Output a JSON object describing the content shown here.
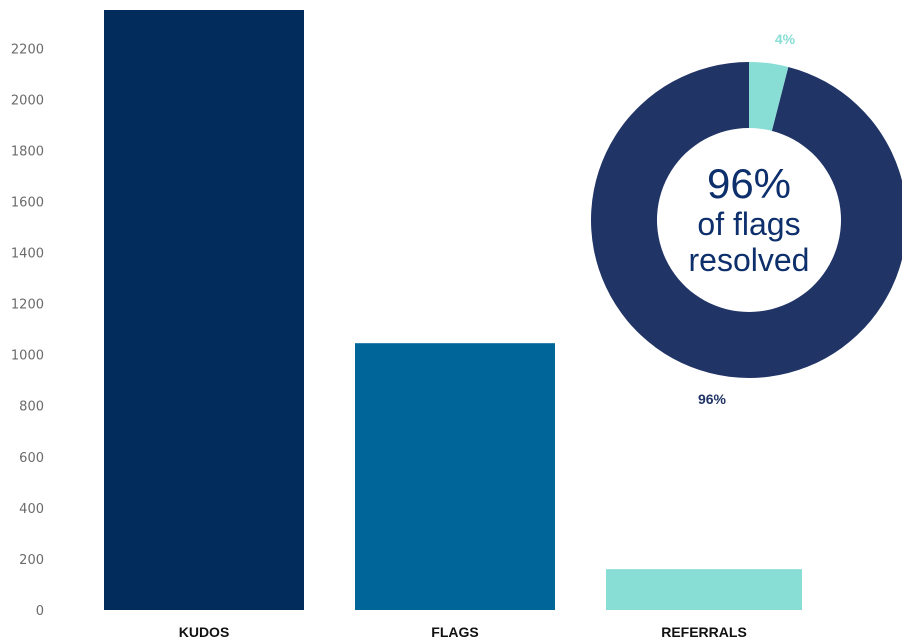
{
  "chart_data": [
    {
      "type": "bar",
      "categories": [
        "KUDOS",
        "FLAGS",
        "REFERRALS"
      ],
      "values": [
        2350,
        1045,
        160
      ],
      "ylim": [
        0,
        2350
      ],
      "yticks": [
        0,
        200,
        400,
        600,
        800,
        1000,
        1200,
        1400,
        1600,
        1800,
        2000,
        2200
      ],
      "grid": false,
      "colors": [
        "#012c5c",
        "#006699",
        "#88ddd5"
      ]
    },
    {
      "type": "pie",
      "variant": "donut",
      "values": [
        96,
        4
      ],
      "labels": [
        "96%",
        "4%"
      ],
      "colors": [
        "#213466",
        "#88ddd5"
      ],
      "center_text": {
        "value": "96%",
        "line1": "of flags",
        "line2": "resolved"
      }
    }
  ]
}
